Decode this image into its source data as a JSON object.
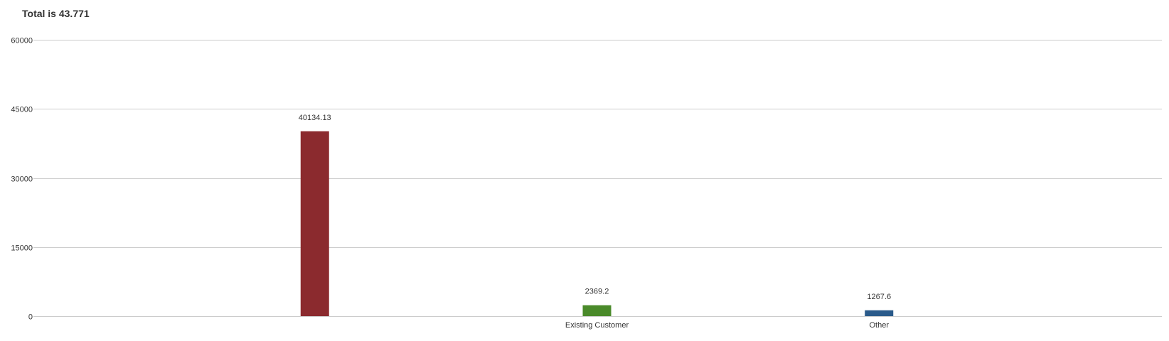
{
  "title": "Total is 43.771",
  "chart_data": {
    "type": "bar",
    "categories": [
      "",
      "Existing Customer",
      "Other"
    ],
    "values": [
      40134.13,
      2369.2,
      1267.6
    ],
    "data_labels": [
      "40134.13",
      "2369.2",
      "1267.6"
    ],
    "colors": [
      "#8b2a2e",
      "#4a8a2a",
      "#2a5a8a"
    ],
    "ylim": [
      0,
      60000
    ],
    "yticks": [
      0,
      15000,
      30000,
      45000,
      60000
    ],
    "ytick_labels": [
      "0",
      "15000",
      "30000",
      "45000",
      "60000"
    ],
    "grid": true,
    "legend": "none"
  }
}
